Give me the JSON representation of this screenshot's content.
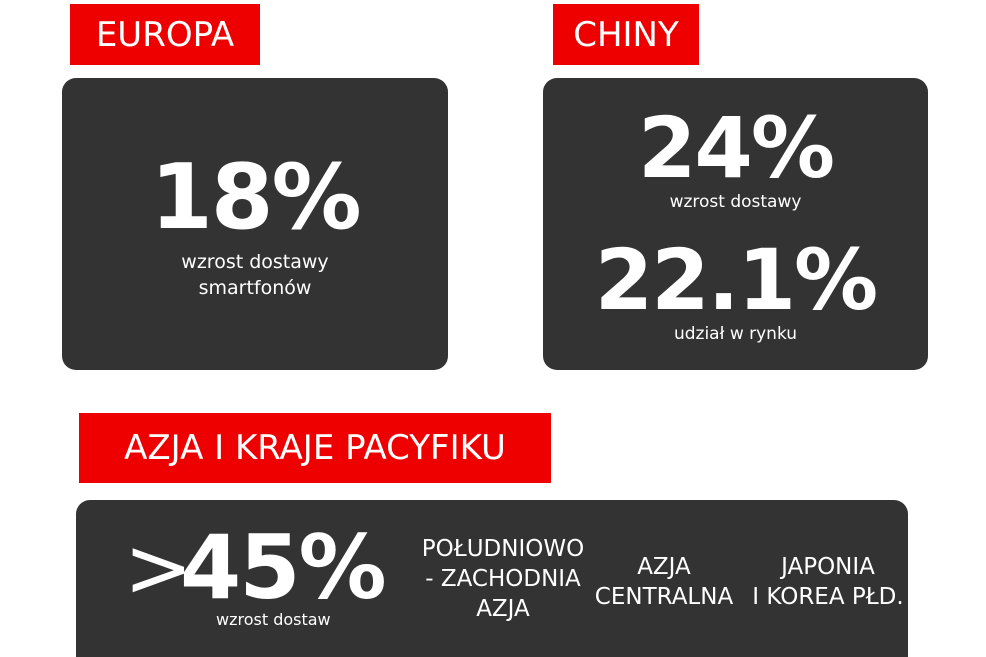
{
  "europe": {
    "label": "EUROPA",
    "value": "18%",
    "caption_line1": "wzrost dostawy",
    "caption_line2": "smartfonów"
  },
  "china": {
    "label": "CHINY",
    "value1": "24%",
    "caption1": "wzrost dostawy",
    "value2": "22.1%",
    "caption2": "udział w rynku"
  },
  "apac": {
    "label": "AZJA I KRAJE PACYFIKU",
    "prefix": ">",
    "value": "45%",
    "caption": "wzrost dostaw",
    "regions": [
      {
        "line1": "POŁUDNIOWO",
        "line2": "- ZACHODNIA",
        "line3": "AZJA"
      },
      {
        "line1": "AZJA",
        "line2": "CENTRALNA"
      },
      {
        "line1": "JAPONIA",
        "line2": "I KOREA PŁD."
      }
    ]
  },
  "colors": {
    "accent_red": "#ee0000",
    "card_dark": "#333333",
    "text_white": "#ffffff"
  }
}
